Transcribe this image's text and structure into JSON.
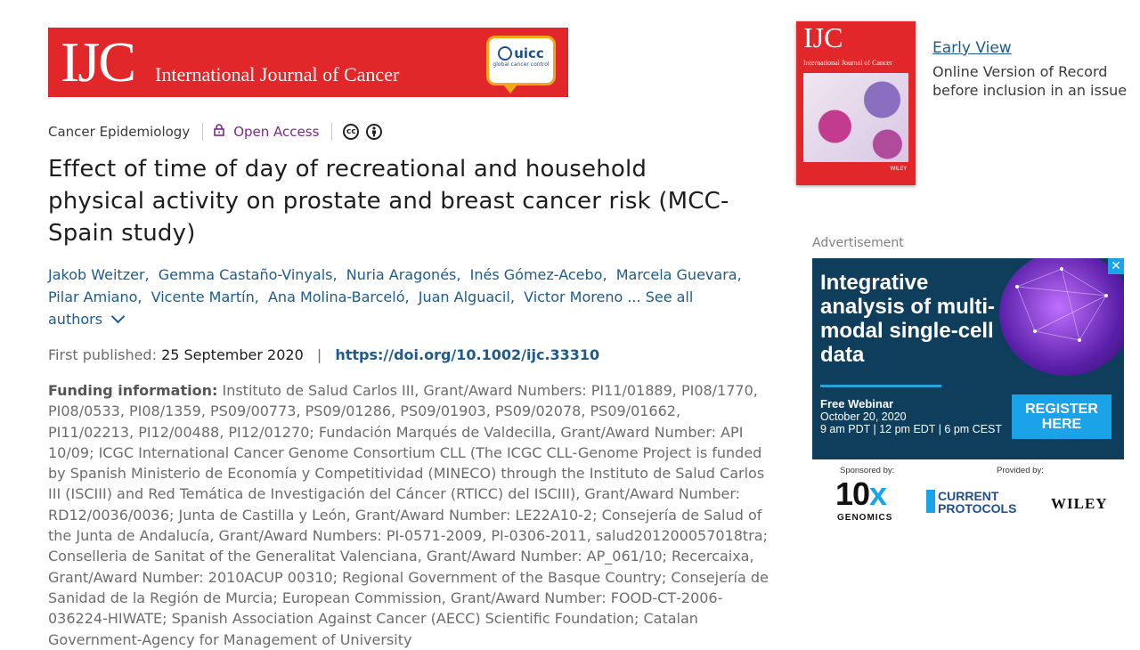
{
  "banner": {
    "logo_text": "IJC",
    "full_title": "International Journal of Cancer",
    "partner_logo": "uicc",
    "partner_tagline": "global cancer control"
  },
  "article_meta": {
    "section": "Cancer Epidemiology",
    "access_icon": "lock-icon",
    "access": "Open Access",
    "license_icons": [
      "cc-icon",
      "attribution-icon"
    ]
  },
  "title": "Effect of time of day of recreational and household physical activity on prostate and breast cancer risk (MCC‐Spain study)",
  "authors": {
    "list": [
      "Jakob Weitzer",
      "Gemma Castaño‐Vinyals",
      "Nuria Aragonés",
      "Inés Gómez‐Acebo",
      "Marcela Guevara",
      "Pilar Amiano",
      "Vicente Martín",
      "Ana Molina‐Barceló",
      "Juan Alguacil",
      "Victor Moreno"
    ],
    "more_label": "... See all authors"
  },
  "publication": {
    "label": "First published:",
    "date": "25 September 2020",
    "separator": "|",
    "doi": "https://doi.org/10.1002/ijc.33310"
  },
  "funding": {
    "label": "Funding information:",
    "text": "Instituto de Salud Carlos III, Grant/Award Numbers: PI11/01889, PI08/1770, PI08/0533, PI08/1359, PS09/00773, PS09/01286, PS09/01903, PS09/02078, PS09/01662, PI11/02213, PI12/00488, PI12/01270; Fundación Marqués de Valdecilla, Grant/Award Number: API 10/09; ICGC International Cancer Genome Consortium CLL (The ICGC CLL‐Genome Project is funded by Spanish Ministerio de Economía y Competitividad (MINECO) through the Instituto de Salud Carlos III (ISCIII) and Red Temática de Investigación del Cáncer (RTICC) del ISCIII), Grant/Award Number: RD12/0036/0036; Junta de Castilla y León, Grant/Award Number: LE22A10‐2; Consejería de Salud of the Junta de Andalucía, Grant/Award Numbers: PI‐0571‐2009, PI‐0306‐2011, salud201200057018tra; Conselleria de Sanitat of the Generalitat Valenciana, Grant/Award Number: AP_061/10; Recercaixa, Grant/Award Number: 2010ACUP 00310; Regional Government of the Basque Country; Consejería de Sanidad de la Región de Murcia; European Commission, Grant/Award Number: FOOD‐CT‐2006‐036224‐HIWATE; Spanish Association Against Cancer (AECC) Scientific Foundation; Catalan Government‐Agency for Management of University"
  },
  "sidebar": {
    "cover_logo": "IJC",
    "cover_title": "International Journal of Cancer",
    "cover_publisher": "WILEY",
    "early_view_title": "Early View",
    "early_view_desc": "Online Version of Record before inclusion in an issue"
  },
  "ad": {
    "label": "Advertisement",
    "headline": "Integrative analysis of multi-modal single-cell data",
    "webinar_title": "Free Webinar",
    "webinar_date": "October 20, 2020",
    "webinar_time": "9 am PDT | 12 pm EDT | 6 pm CEST",
    "cta": "REGISTER HERE",
    "close": "✕",
    "sponsored_by": "Sponsored by:",
    "provided_by": "Provided by:",
    "sponsor_main": "10",
    "sponsor_x": "x",
    "sponsor_sub": "GENOMICS",
    "provider1": "CURRENT PROTOCOLS",
    "provider2": "WILEY"
  }
}
